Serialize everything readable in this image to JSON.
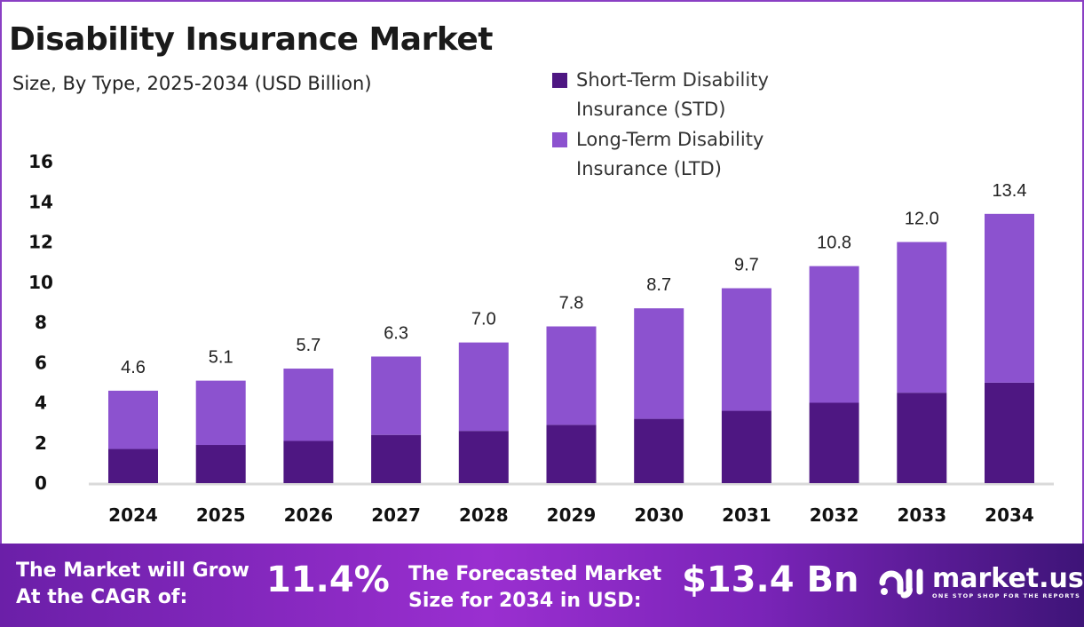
{
  "chart_data": {
    "type": "bar",
    "stacked": true,
    "title": "Disability Insurance Market",
    "subtitle": "Size, By Type, 2025-2034 (USD Billion)",
    "categories": [
      "2024",
      "2025",
      "2026",
      "2027",
      "2028",
      "2029",
      "2030",
      "2031",
      "2032",
      "2033",
      "2034"
    ],
    "series": [
      {
        "name": "Short-Term Disability Insurance (STD)",
        "color": "#4e1782",
        "values": [
          1.7,
          1.9,
          2.1,
          2.4,
          2.6,
          2.9,
          3.2,
          3.6,
          4.0,
          4.5,
          5.0
        ]
      },
      {
        "name": "Long-Term Disability Insurance (LTD)",
        "color": "#8c52cf",
        "values": [
          2.9,
          3.2,
          3.6,
          3.9,
          4.4,
          4.9,
          5.5,
          6.1,
          6.8,
          7.5,
          8.4
        ]
      }
    ],
    "totals": [
      "4.6",
      "5.1",
      "5.7",
      "6.3",
      "7.0",
      "7.8",
      "8.7",
      "9.7",
      "10.8",
      "12.0",
      "13.4"
    ],
    "yticks": [
      "0",
      "2",
      "4",
      "6",
      "8",
      "10",
      "12",
      "14",
      "16"
    ],
    "ylim": [
      0,
      16
    ],
    "grid": false,
    "legend_position": "top-right"
  },
  "footer": {
    "cagr_label_line1": "The Market will Grow",
    "cagr_label_line2": "At the CAGR of:",
    "cagr_value": "11.4%",
    "forecast_label_line1": "The Forecasted Market",
    "forecast_label_line2": "Size for 2034 in USD:",
    "forecast_value": "$13.4 Bn",
    "logo_text": "market.us",
    "logo_tagline": "ONE STOP SHOP FOR THE REPORTS"
  }
}
